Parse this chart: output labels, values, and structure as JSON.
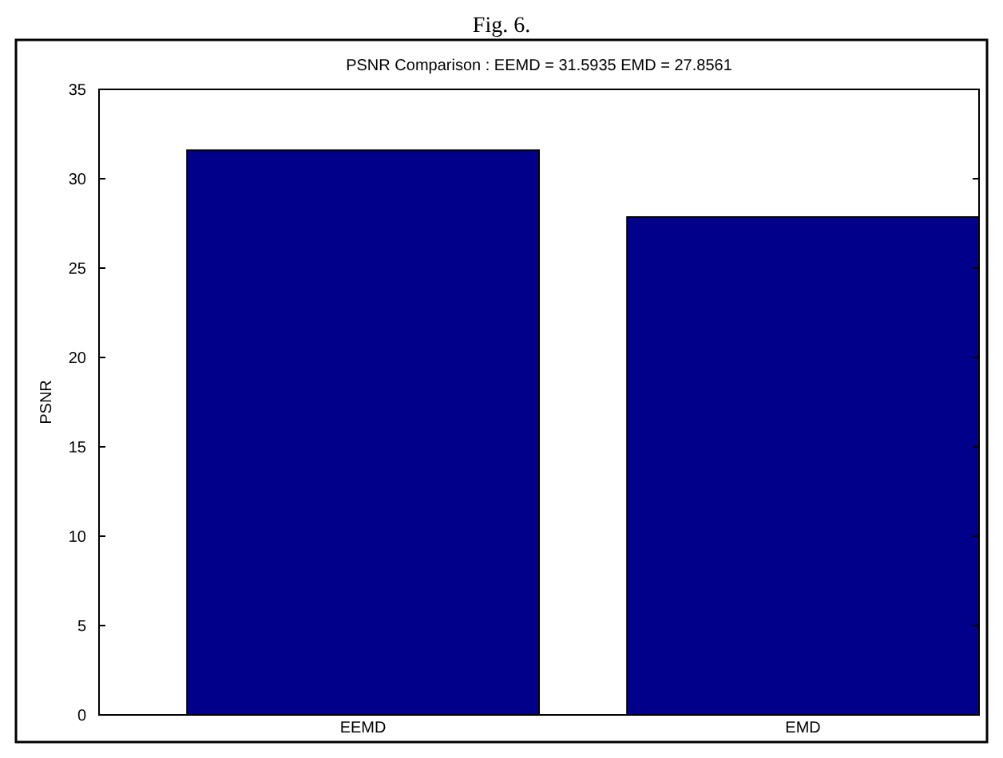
{
  "chart_data": {
    "type": "bar",
    "title": "PSNR Comparison : EEMD = 31.5935 EMD = 27.8561",
    "ylabel": "PSNR",
    "categories": [
      "EEMD",
      "EMD"
    ],
    "values": [
      31.5935,
      27.8561
    ],
    "color": "#00008b",
    "ylim": [
      0,
      35
    ],
    "yticks": [
      0,
      5,
      10,
      15,
      20,
      25,
      30,
      35
    ],
    "grid": false,
    "annotations": [
      "Fig. 6."
    ]
  }
}
